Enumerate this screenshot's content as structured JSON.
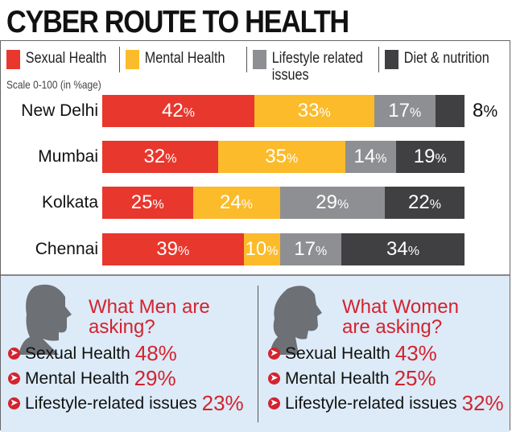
{
  "chart_data": {
    "type": "bar",
    "orientation": "horizontal-stacked",
    "title": "CYBER ROUTE TO HEALTH",
    "scale_note": "Scale 0-100 (in %age)",
    "xlim": [
      0,
      100
    ],
    "categories": [
      "New Delhi",
      "Mumbai",
      "Kolkata",
      "Chennai"
    ],
    "series": [
      {
        "name": "Sexual Health",
        "color": "#e8372d",
        "values": [
          42,
          32,
          25,
          39
        ]
      },
      {
        "name": "Mental Health",
        "color": "#fbbb2a",
        "values": [
          33,
          35,
          24,
          10
        ]
      },
      {
        "name": "Lifestyle related issues",
        "color": "#8e8f92",
        "values": [
          17,
          14,
          29,
          17
        ]
      },
      {
        "name": "Diet & nutrition",
        "color": "#404042",
        "values": [
          8,
          19,
          22,
          34
        ]
      }
    ],
    "value_suffix": "%"
  },
  "men": {
    "heading": "What Men are asking?",
    "items": [
      {
        "label": "Sexual Health",
        "value": "48%"
      },
      {
        "label": "Mental Health",
        "value": "29%"
      },
      {
        "label": "Lifestyle-related issues",
        "value": "23%"
      }
    ]
  },
  "women": {
    "heading": "What Women are asking?",
    "items": [
      {
        "label": "Sexual Health",
        "value": "43%"
      },
      {
        "label": "Mental Health",
        "value": "25%"
      },
      {
        "label": "Lifestyle-related issues",
        "value": "32%"
      }
    ]
  },
  "icons": {
    "bullet": "arrow-circle-icon",
    "men": "male-head-silhouette-icon",
    "women": "female-head-silhouette-icon"
  }
}
